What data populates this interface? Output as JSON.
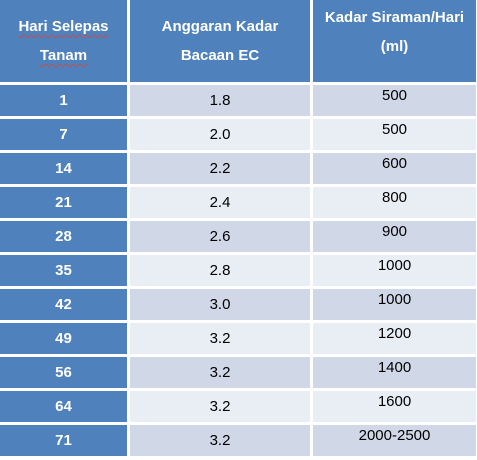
{
  "header": {
    "col1_line1": "Hari Selepas",
    "col1_line2": "Tanam",
    "col2_line1": "Anggaran Kadar",
    "col2_line2": "Bacaan EC",
    "col3_line1": "Kadar Siraman/Hari",
    "col3_line2": "(ml)"
  },
  "rows": [
    {
      "day": "1",
      "ec": "1.8",
      "ml": "500"
    },
    {
      "day": "7",
      "ec": "2.0",
      "ml": "500"
    },
    {
      "day": "14",
      "ec": "2.2",
      "ml": "600"
    },
    {
      "day": "21",
      "ec": "2.4",
      "ml": "800"
    },
    {
      "day": "28",
      "ec": "2.6",
      "ml": "900"
    },
    {
      "day": "35",
      "ec": "2.8",
      "ml": "1000"
    },
    {
      "day": "42",
      "ec": "3.0",
      "ml": "1000"
    },
    {
      "day": "49",
      "ec": "3.2",
      "ml": "1200"
    },
    {
      "day": "56",
      "ec": "3.2",
      "ml": "1400"
    },
    {
      "day": "64",
      "ec": "3.2",
      "ml": "1600"
    },
    {
      "day": "71",
      "ec": "3.2",
      "ml": "2000-2500"
    }
  ]
}
